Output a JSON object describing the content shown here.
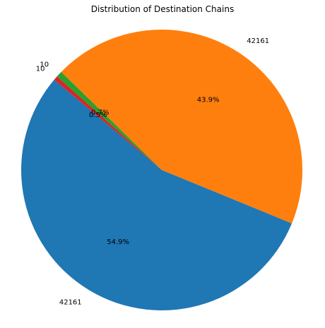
{
  "chart_data": {
    "type": "pie",
    "title": "Distribution of Destination Chains",
    "slices": [
      {
        "label": "42161",
        "value": 54.9,
        "pct_label": "54.9%",
        "color": "#1f77b4"
      },
      {
        "label": "42161",
        "value": 43.9,
        "pct_label": "43.9%",
        "color": "#ff7f0e"
      },
      {
        "label": "10",
        "value": 0.7,
        "pct_label": "0.7%",
        "color": "#2ca02c"
      },
      {
        "label": "10",
        "value": 0.5,
        "pct_label": "0.5%",
        "color": "#d62728"
      }
    ],
    "start_angle_deg": 140,
    "legend": "none",
    "grid": false
  }
}
